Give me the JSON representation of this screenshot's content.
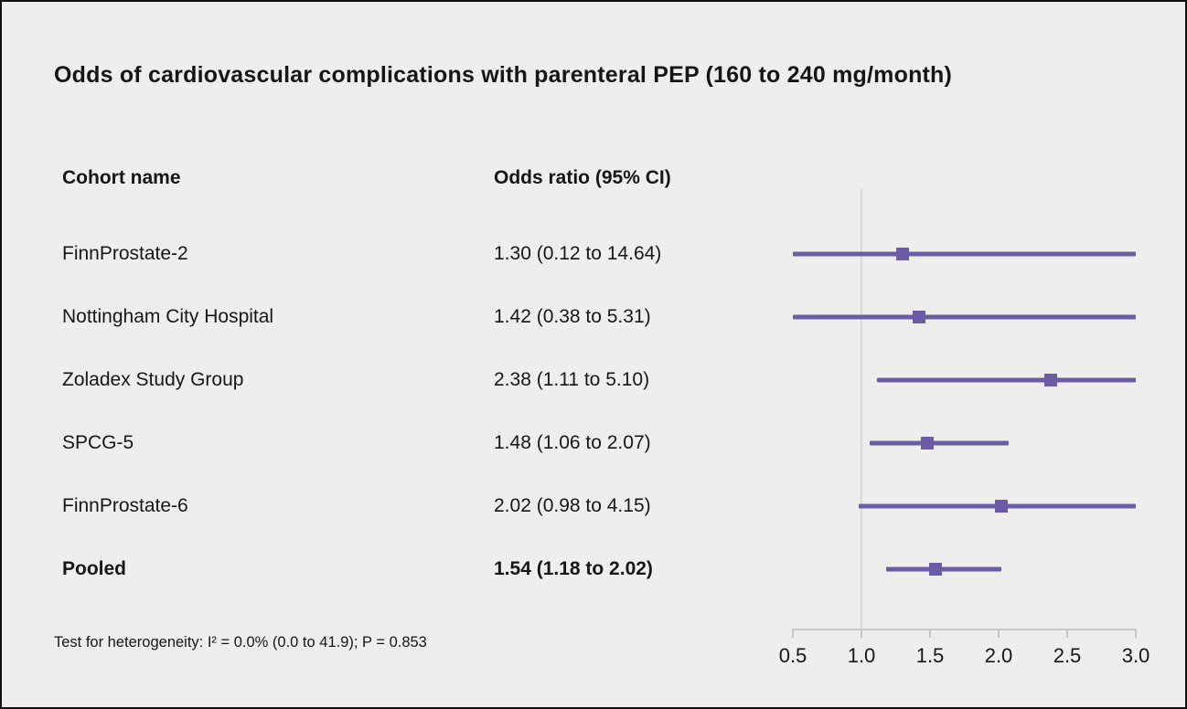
{
  "figure": {
    "title": "Odds of cardiovascular complications with parenteral PEP (160 to 240 mg/month)",
    "columns": {
      "cohort": "Cohort name",
      "odds_ratio": "Odds ratio (95% CI)"
    },
    "footnote": "Test for heterogeneity: I² = 0.0% (0.0 to 41.9); P = 0.853"
  },
  "chart_data": {
    "type": "forest",
    "title": "Odds of cardiovascular complications with parenteral PEP (160 to 240 mg/month)",
    "xlabel": "",
    "ylabel": "",
    "rows": [
      {
        "label": "FinnProstate-2",
        "or_text": "1.30 (0.12 to 14.64)",
        "or": 1.3,
        "lo": 0.12,
        "hi": 14.64,
        "bold": false
      },
      {
        "label": "Nottingham City Hospital",
        "or_text": "1.42 (0.38 to 5.31)",
        "or": 1.42,
        "lo": 0.38,
        "hi": 5.31,
        "bold": false
      },
      {
        "label": "Zoladex Study Group",
        "or_text": "2.38 (1.11 to 5.10)",
        "or": 2.38,
        "lo": 1.11,
        "hi": 5.1,
        "bold": false
      },
      {
        "label": "SPCG-5",
        "or_text": "1.48 (1.06 to 2.07)",
        "or": 1.48,
        "lo": 1.06,
        "hi": 2.07,
        "bold": false
      },
      {
        "label": "FinnProstate-6",
        "or_text": "2.02 (0.98 to 4.15)",
        "or": 2.02,
        "lo": 0.98,
        "hi": 4.15,
        "bold": false
      },
      {
        "label": "Pooled",
        "or_text": "1.54 (1.18 to 2.02)",
        "or": 1.54,
        "lo": 1.18,
        "hi": 2.02,
        "bold": true
      }
    ],
    "x_axis": {
      "min": 0.5,
      "max": 3.0,
      "values": [
        0.5,
        1.0,
        1.5,
        2.0,
        2.5,
        3.0
      ],
      "ticks": [
        "0.5",
        "1.0",
        "1.5",
        "2.0",
        "2.5",
        "3.0"
      ],
      "reference_line": 1.0
    },
    "colors": {
      "marker": "#6c5ca6",
      "axis": "#c9c7c4",
      "background": "#f0eeec",
      "text": "#161616",
      "reference": "#dcdad7"
    }
  }
}
